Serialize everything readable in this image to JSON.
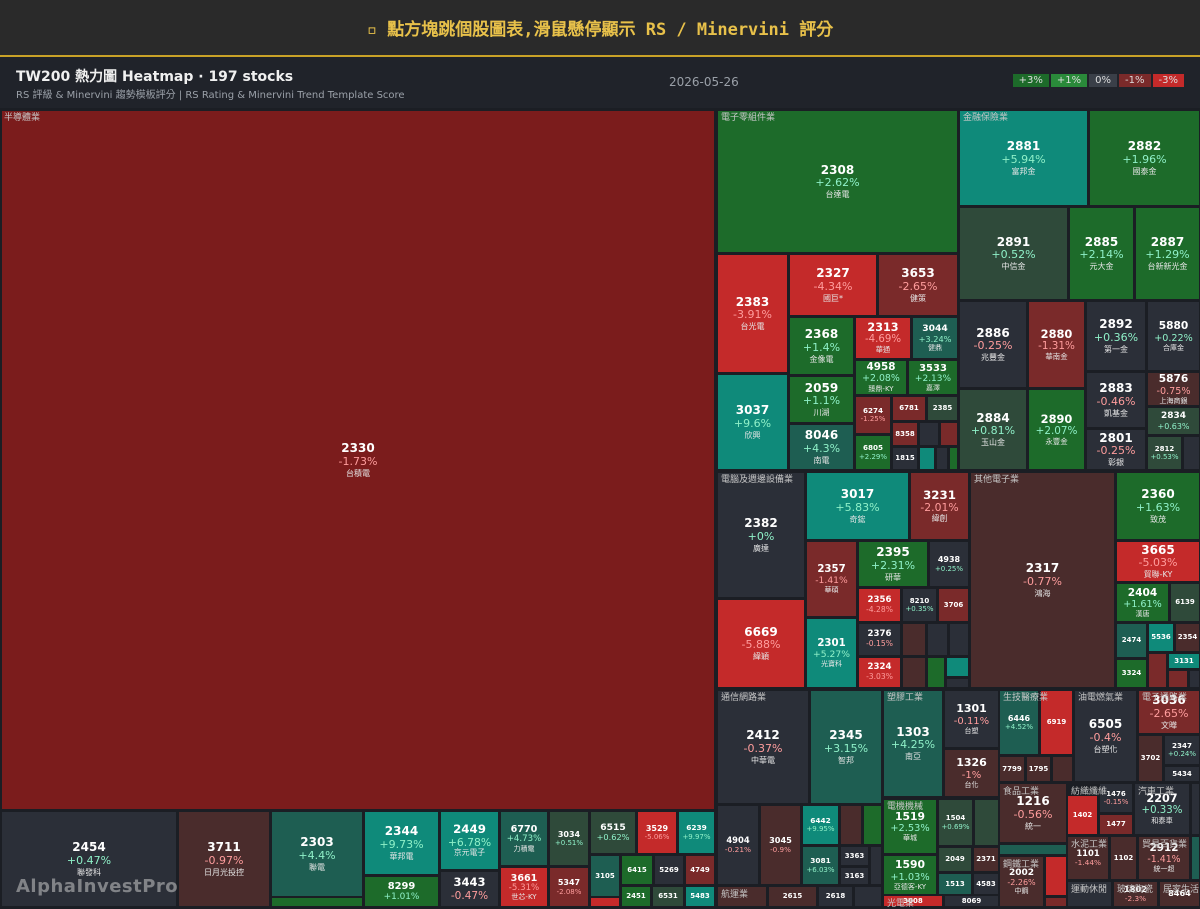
{
  "header": {
    "title": "▫ 點方塊跳個股圖表,滑鼠懸停顯示 RS / Minervini 評分"
  },
  "toolbar": {
    "title": "TW200 熱力圖 Heatmap · 197 stocks",
    "subtitle": "RS 評級 & Minervini 趨勢模板評分 | RS Rating & Minervini Trend Template Score",
    "date": "2026-05-26",
    "legend": [
      {
        "label": "+3%",
        "color": "#1d6b2a"
      },
      {
        "label": "+1%",
        "color": "#2a8a3a"
      },
      {
        "label": "0%",
        "color": "#3a3f48"
      },
      {
        "label": "-1%",
        "color": "#7a2a2a"
      },
      {
        "label": "-3%",
        "color": "#c42a2a"
      }
    ]
  },
  "sectors": [
    {
      "name": "半導體業",
      "tiles": [
        {
          "code": "2330",
          "change": "-1.73%",
          "name": "台積電",
          "color": "#7b1c1c"
        },
        {
          "code": "2454",
          "change": "+0.47%",
          "name": "聯發科",
          "color": "#2b2f38"
        },
        {
          "code": "3711",
          "change": "-0.97%",
          "name": "日月光投控",
          "color": "#4a2c2c"
        },
        {
          "code": "2303",
          "change": "+4.4%",
          "name": "聯電",
          "color": "#1e5e52"
        },
        {
          "color": "#1d6b2a"
        },
        {
          "code": "2344",
          "change": "+9.73%",
          "name": "華邦電",
          "color": "#0f8a7a"
        },
        {
          "code": "8299",
          "change": "+1.01%",
          "color": "#1d6b2a"
        },
        {
          "code": "2449",
          "change": "+6.78%",
          "name": "京元電子",
          "color": "#0f8a7a"
        },
        {
          "code": "3443",
          "change": "-0.47%",
          "color": "#2b2f38"
        },
        {
          "code": "6770",
          "change": "+4.73%",
          "name": "力積電",
          "color": "#1e5e52"
        },
        {
          "code": "3661",
          "change": "-5.31%",
          "name": "世芯-KY",
          "color": "#c42a2a"
        },
        {
          "code": "3034",
          "change": "+0.51%",
          "color": "#2f4a3a"
        },
        {
          "code": "5347",
          "change": "-2.08%",
          "color": "#7a2a2a"
        },
        {
          "code": "6515",
          "change": "+0.62%",
          "color": "#2f4a3a"
        },
        {
          "code": "3529",
          "change": "-5.06%",
          "color": "#c42a2a"
        },
        {
          "code": "6239",
          "change": "+9.97%",
          "color": "#0f8a7a"
        },
        {
          "code": "3105",
          "color": "#1e5e52"
        },
        {
          "color": "#c42a2a"
        },
        {
          "code": "6415",
          "color": "#1d6b2a"
        },
        {
          "code": "5269",
          "color": "#2b2f38"
        },
        {
          "code": "4749",
          "color": "#7a2a2a"
        },
        {
          "code": "2451",
          "color": "#1d6b2a"
        },
        {
          "code": "6531",
          "color": "#2f4a3a"
        },
        {
          "code": "5483",
          "color": "#0f8a7a"
        }
      ]
    },
    {
      "name": "電子零組件業",
      "tiles": [
        {
          "code": "2308",
          "change": "+2.62%",
          "name": "台達電",
          "color": "#1d6b2a"
        },
        {
          "code": "2383",
          "change": "-3.91%",
          "name": "台光電",
          "color": "#c42a2a"
        },
        {
          "code": "3037",
          "change": "+9.6%",
          "name": "欣興",
          "color": "#0f8a7a"
        },
        {
          "code": "2327",
          "change": "-4.34%",
          "name": "國巨*",
          "color": "#c42a2a"
        },
        {
          "code": "3653",
          "change": "-2.65%",
          "name": "健策",
          "color": "#7a2a2a"
        },
        {
          "code": "2368",
          "change": "+1.4%",
          "name": "金像電",
          "color": "#1d6b2a"
        },
        {
          "code": "2313",
          "change": "-4.69%",
          "name": "華通",
          "color": "#c42a2a"
        },
        {
          "code": "3044",
          "change": "+3.24%",
          "name": "健鼎",
          "color": "#1e5e52"
        },
        {
          "code": "4958",
          "change": "+2.08%",
          "name": "臻鼎-KY",
          "color": "#1d6b2a"
        },
        {
          "code": "3533",
          "change": "+2.13%",
          "name": "嘉澤",
          "color": "#1d6b2a"
        },
        {
          "code": "2059",
          "change": "+1.1%",
          "name": "川湖",
          "color": "#1d6b2a"
        },
        {
          "code": "8046",
          "change": "+4.3%",
          "name": "南電",
          "color": "#1e5e52"
        },
        {
          "code": "6274",
          "change": "-1.25%",
          "color": "#7a2a2a"
        },
        {
          "code": "6781",
          "color": "#7a2a2a"
        },
        {
          "code": "2385",
          "color": "#2f4a3a"
        },
        {
          "code": "8358",
          "color": "#7a2a2a"
        },
        {
          "code": "6805",
          "change": "+2.29%",
          "color": "#1d6b2a"
        },
        {
          "code": "1815",
          "color": "#2b2f38"
        },
        {
          "color": "#2b2f38"
        },
        {
          "color": "#7a2a2a"
        },
        {
          "color": "#0f8a7a"
        },
        {
          "color": "#2b2f38"
        },
        {
          "color": "#1d6b2a"
        }
      ]
    },
    {
      "name": "金融保險業",
      "tiles": [
        {
          "code": "2881",
          "change": "+5.94%",
          "name": "富邦金",
          "color": "#0f8a7a"
        },
        {
          "code": "2882",
          "change": "+1.96%",
          "name": "國泰金",
          "color": "#1d6b2a"
        },
        {
          "code": "2891",
          "change": "+0.52%",
          "name": "中信金",
          "color": "#2f4a3a"
        },
        {
          "code": "2885",
          "change": "+2.14%",
          "name": "元大金",
          "color": "#1d6b2a"
        },
        {
          "code": "2887",
          "change": "+1.29%",
          "name": "台新新光金",
          "color": "#1d6b2a"
        },
        {
          "code": "2886",
          "change": "-0.25%",
          "name": "兆豐金",
          "color": "#2b2f38"
        },
        {
          "code": "2880",
          "change": "-1.31%",
          "name": "華南金",
          "color": "#7a2a2a"
        },
        {
          "code": "2892",
          "change": "+0.36%",
          "name": "第一金",
          "color": "#2b2f38"
        },
        {
          "code": "5880",
          "change": "+0.22%",
          "name": "合庫金",
          "color": "#2b2f38"
        },
        {
          "code": "2883",
          "change": "-0.46%",
          "name": "凱基金",
          "color": "#2b2f38"
        },
        {
          "code": "5876",
          "change": "-0.75%",
          "name": "上海商銀",
          "color": "#4a2c2c"
        },
        {
          "code": "2834",
          "change": "+0.63%",
          "color": "#2f4a3a"
        },
        {
          "code": "2884",
          "change": "+0.81%",
          "name": "玉山金",
          "color": "#2f4a3a"
        },
        {
          "code": "2890",
          "change": "+2.07%",
          "name": "永豐金",
          "color": "#1d6b2a"
        },
        {
          "code": "2801",
          "change": "-0.25%",
          "name": "彰銀",
          "color": "#2b2f38"
        },
        {
          "code": "2812",
          "change": "+0.53%",
          "color": "#2f4a3a"
        },
        {
          "color": "#2b2f38"
        }
      ]
    },
    {
      "name": "電腦及週邊設備業",
      "tiles": [
        {
          "code": "2382",
          "change": "+0%",
          "name": "廣達",
          "color": "#2b2f38"
        },
        {
          "code": "6669",
          "change": "-5.88%",
          "name": "緯穎",
          "color": "#c42a2a"
        },
        {
          "code": "3017",
          "change": "+5.83%",
          "name": "奇鋐",
          "color": "#0f8a7a"
        },
        {
          "code": "3231",
          "change": "-2.01%",
          "name": "緯創",
          "color": "#7a2a2a"
        },
        {
          "code": "2357",
          "change": "-1.41%",
          "name": "華碩",
          "color": "#7a2a2a"
        },
        {
          "code": "2301",
          "change": "+5.27%",
          "name": "光寶科",
          "color": "#0f8a7a"
        },
        {
          "code": "2395",
          "change": "+2.31%",
          "name": "研華",
          "color": "#1d6b2a"
        },
        {
          "code": "4938",
          "change": "+0.25%",
          "color": "#2b2f38"
        },
        {
          "code": "2356",
          "change": "-4.28%",
          "color": "#c42a2a"
        },
        {
          "code": "8210",
          "change": "+0.35%",
          "color": "#2b2f38"
        },
        {
          "code": "3706",
          "color": "#7a2a2a"
        },
        {
          "code": "2376",
          "change": "-0.15%",
          "color": "#2b2f38"
        },
        {
          "code": "2324",
          "change": "-3.03%",
          "color": "#c42a2a"
        },
        {
          "color": "#4a2c2c"
        },
        {
          "color": "#2b2f38"
        },
        {
          "color": "#2b2f38"
        },
        {
          "color": "#4a2c2c"
        },
        {
          "color": "#1d6b2a"
        },
        {
          "color": "#0f8a7a"
        },
        {
          "color": "#2b2f38"
        }
      ]
    },
    {
      "name": "其他電子業",
      "tiles": [
        {
          "code": "2317",
          "change": "-0.77%",
          "name": "鴻海",
          "color": "#4a2c2c"
        },
        {
          "code": "2360",
          "change": "+1.63%",
          "name": "致茂",
          "color": "#1d6b2a"
        },
        {
          "code": "3665",
          "change": "-5.03%",
          "name": "貿聯-KY",
          "color": "#c42a2a"
        },
        {
          "code": "2404",
          "change": "+1.61%",
          "name": "漢唐",
          "color": "#1d6b2a"
        },
        {
          "code": "6139",
          "color": "#2f4a3a"
        },
        {
          "code": "2474",
          "color": "#1e5e52"
        },
        {
          "code": "5536",
          "color": "#0f8a7a"
        },
        {
          "code": "2354",
          "color": "#4a2c2c"
        },
        {
          "code": "3324",
          "color": "#1d6b2a"
        },
        {
          "code": "3131",
          "color": "#0f8a7a"
        },
        {
          "color": "#7a2a2a"
        },
        {
          "color": "#7a2a2a"
        },
        {
          "color": "#2b2f38"
        }
      ]
    },
    {
      "name": "通信網路業",
      "tiles": [
        {
          "code": "2412",
          "change": "-0.37%",
          "name": "中華電",
          "color": "#2b2f38"
        },
        {
          "code": "2345",
          "change": "+3.15%",
          "name": "智邦",
          "color": "#1e5e52"
        },
        {
          "code": "4904",
          "change": "-0.21%",
          "color": "#2b2f38"
        },
        {
          "code": "3045",
          "change": "-0.9%",
          "color": "#4a2c2c"
        },
        {
          "code": "6442",
          "change": "+9.95%",
          "color": "#0f8a7a"
        },
        {
          "code": "3081",
          "change": "+6.03%",
          "color": "#1e5e52"
        },
        {
          "color": "#4a2c2c"
        },
        {
          "color": "#1d6b2a"
        },
        {
          "code": "3363",
          "color": "#2b2f38"
        },
        {
          "code": "3163",
          "color": "#2b2f38"
        },
        {
          "color": "#2b2f38"
        }
      ]
    },
    {
      "name": "塑膠工業",
      "tiles": [
        {
          "code": "1303",
          "change": "+4.25%",
          "name": "南亞",
          "color": "#1e5e52"
        },
        {
          "code": "1301",
          "change": "-0.11%",
          "name": "台塑",
          "color": "#2b2f38"
        },
        {
          "code": "1326",
          "change": "-1%",
          "name": "台化",
          "color": "#4a2c2c"
        }
      ]
    },
    {
      "name": "電機機械",
      "tiles": [
        {
          "code": "1519",
          "change": "+2.53%",
          "name": "華城",
          "color": "#1d6b2a"
        },
        {
          "code": "1504",
          "change": "+0.69%",
          "color": "#2f4a3a"
        },
        {
          "color": "#2f4a3a"
        },
        {
          "code": "1590",
          "change": "+1.03%",
          "name": "亞德客-KY",
          "color": "#1d6b2a"
        },
        {
          "code": "2049",
          "color": "#2f4a3a"
        },
        {
          "code": "2371",
          "color": "#4a2c2c"
        },
        {
          "code": "1513",
          "color": "#1e5e52"
        },
        {
          "code": "4583",
          "color": "#2b2f38"
        }
      ]
    },
    {
      "name": "光電業",
      "tiles": [
        {
          "code": "3008",
          "color": "#c42a2a"
        },
        {
          "code": "8069",
          "color": "#2b2f38"
        }
      ]
    },
    {
      "name": "生技醫療業",
      "tiles": [
        {
          "code": "6446",
          "change": "+4.52%",
          "color": "#1e5e52"
        },
        {
          "code": "6919",
          "color": "#c42a2a"
        },
        {
          "code": "7799",
          "color": "#4a2c2c"
        },
        {
          "code": "1795",
          "color": "#4a2c2c"
        },
        {
          "color": "#4a2c2c"
        }
      ]
    },
    {
      "name": "食品工業",
      "tiles": [
        {
          "code": "1216",
          "change": "-0.56%",
          "name": "統一",
          "color": "#4a2c2c"
        },
        {
          "color": "#1e5e52"
        }
      ]
    },
    {
      "name": "鋼鐵工業",
      "tiles": [
        {
          "code": "2002",
          "change": "-2.26%",
          "name": "中鋼",
          "color": "#4a2c2c"
        },
        {
          "color": "#c42a2a"
        },
        {
          "color": "#7a2a2a"
        }
      ]
    },
    {
      "name": "油電燃氣業",
      "tiles": [
        {
          "code": "6505",
          "change": "-0.4%",
          "name": "台塑化",
          "color": "#2b2f38"
        }
      ]
    },
    {
      "name": "電子通路業",
      "tiles": [
        {
          "code": "3036",
          "change": "-2.65%",
          "name": "文曄",
          "color": "#7a2a2a"
        },
        {
          "code": "3702",
          "color": "#4a2c2c"
        },
        {
          "code": "2347",
          "change": "+0.24%",
          "color": "#2b2f38"
        },
        {
          "code": "5434",
          "color": "#2b2f38"
        }
      ]
    },
    {
      "name": "紡織纖維",
      "tiles": [
        {
          "code": "1402",
          "color": "#c42a2a"
        },
        {
          "code": "1476",
          "change": "-0.15%",
          "color": "#2b2f38"
        },
        {
          "code": "1477",
          "color": "#7a2a2a"
        }
      ]
    },
    {
      "name": "汽車工業",
      "tiles": [
        {
          "code": "2207",
          "change": "+0.33%",
          "name": "和泰車",
          "color": "#2b2f38"
        },
        {
          "color": "#2b2f38"
        }
      ]
    },
    {
      "name": "水泥工業",
      "tiles": [
        {
          "code": "1101",
          "change": "-1.44%",
          "color": "#4a2c2c"
        },
        {
          "code": "1102",
          "color": "#4a2c2c"
        }
      ]
    },
    {
      "name": "貿易百貨業",
      "tiles": [
        {
          "code": "2912",
          "change": "-1.41%",
          "name": "統一超",
          "color": "#4a2c2c"
        },
        {
          "color": "#1e5e52"
        }
      ]
    },
    {
      "name": "運動休閒",
      "tiles": [
        {
          "color": "#2b2f38"
        }
      ]
    },
    {
      "name": "玻璃陶瓷",
      "tiles": [
        {
          "code": "1802",
          "change": "-2.3%",
          "color": "#4a2c2c"
        }
      ]
    },
    {
      "name": "居家生活",
      "tiles": [
        {
          "code": "8464",
          "color": "#4a2c2c"
        }
      ]
    },
    {
      "name": "航運業",
      "tiles": [
        {
          "color": "#4a2c2c"
        },
        {
          "code": "2615",
          "color": "#4a2c2c"
        },
        {
          "code": "2618",
          "color": "#2b2f38"
        },
        {
          "color": "#2b2f38"
        }
      ]
    }
  ],
  "watermark": "AlphaInvestPro"
}
